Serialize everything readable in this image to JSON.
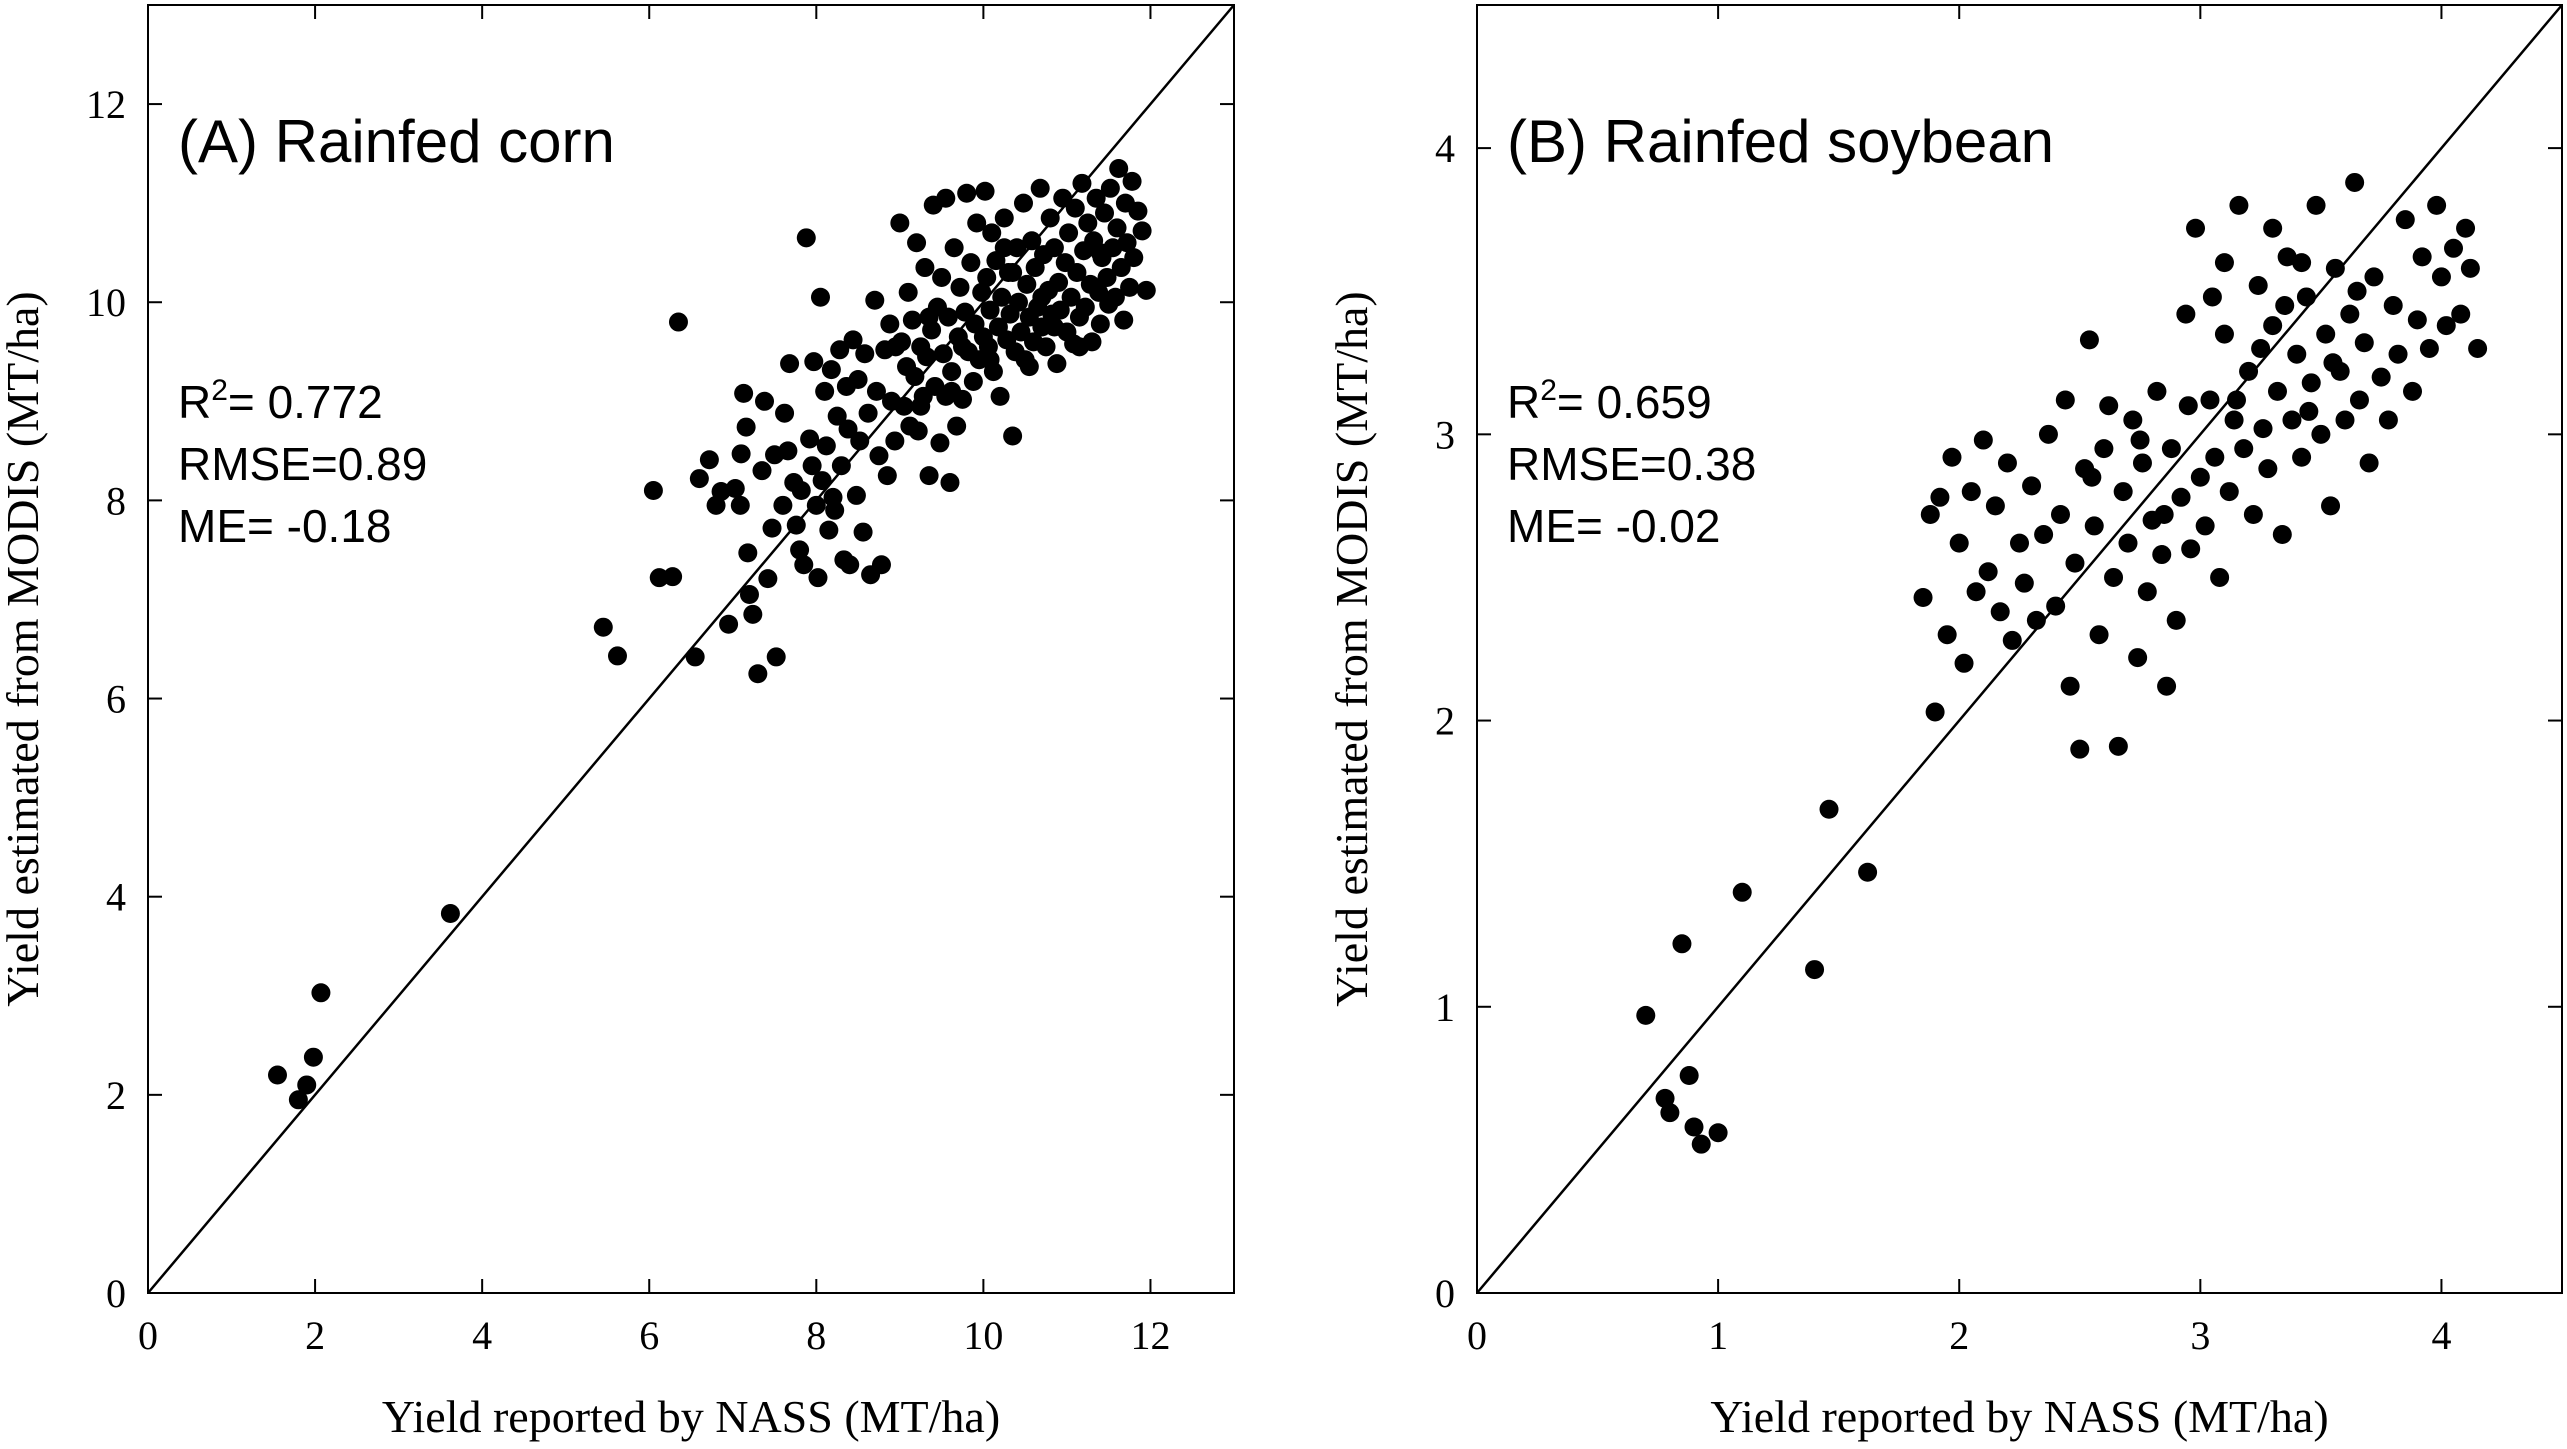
{
  "chart_data": [
    {
      "type": "scatter",
      "panel_title": "(A) Rainfed corn",
      "xlabel": "Yield reported by NASS (MT/ha)",
      "ylabel": "Yield estimated from MODIS (MT/ha)",
      "xlim": [
        0,
        13
      ],
      "ylim": [
        0,
        13
      ],
      "xticks": [
        0,
        2,
        4,
        6,
        8,
        10,
        12
      ],
      "yticks": [
        0,
        2,
        4,
        6,
        8,
        10,
        12
      ],
      "reference_line": "1:1",
      "grid": false,
      "stats": {
        "r2_label": "R",
        "r2_sup": "2",
        "r2_value": "= 0.772",
        "rmse": "RMSE=0.89",
        "me": "ME= -0.18"
      },
      "points": [
        [
          1.55,
          2.2
        ],
        [
          1.8,
          1.95
        ],
        [
          1.9,
          2.1
        ],
        [
          1.98,
          2.38
        ],
        [
          2.07,
          3.03
        ],
        [
          3.62,
          3.83
        ],
        [
          5.45,
          6.72
        ],
        [
          5.62,
          6.43
        ],
        [
          6.05,
          8.1
        ],
        [
          6.12,
          7.22
        ],
        [
          6.28,
          7.23
        ],
        [
          6.35,
          9.8
        ],
        [
          6.55,
          6.42
        ],
        [
          6.6,
          8.22
        ],
        [
          6.72,
          8.41
        ],
        [
          6.8,
          7.95
        ],
        [
          6.86,
          8.09
        ],
        [
          6.95,
          6.75
        ],
        [
          7.03,
          8.12
        ],
        [
          7.09,
          7.95
        ],
        [
          7.1,
          8.47
        ],
        [
          7.13,
          9.08
        ],
        [
          7.16,
          8.74
        ],
        [
          7.18,
          7.47
        ],
        [
          7.2,
          7.05
        ],
        [
          7.24,
          6.85
        ],
        [
          7.3,
          6.25
        ],
        [
          7.35,
          8.3
        ],
        [
          7.38,
          9.0
        ],
        [
          7.42,
          7.21
        ],
        [
          7.47,
          7.72
        ],
        [
          7.5,
          8.46
        ],
        [
          7.52,
          6.42
        ],
        [
          7.6,
          7.95
        ],
        [
          7.62,
          8.88
        ],
        [
          7.66,
          8.5
        ],
        [
          7.68,
          9.38
        ],
        [
          7.73,
          8.18
        ],
        [
          7.76,
          7.75
        ],
        [
          7.8,
          7.5
        ],
        [
          7.82,
          8.1
        ],
        [
          7.85,
          7.35
        ],
        [
          7.88,
          10.65
        ],
        [
          7.92,
          8.62
        ],
        [
          7.95,
          8.35
        ],
        [
          7.97,
          9.4
        ],
        [
          8.0,
          7.95
        ],
        [
          8.02,
          7.22
        ],
        [
          8.05,
          10.05
        ],
        [
          8.07,
          8.2
        ],
        [
          8.1,
          9.1
        ],
        [
          8.12,
          8.55
        ],
        [
          8.15,
          7.7
        ],
        [
          8.18,
          9.32
        ],
        [
          8.2,
          8.03
        ],
        [
          8.22,
          7.9
        ],
        [
          8.25,
          8.85
        ],
        [
          8.28,
          9.52
        ],
        [
          8.3,
          8.35
        ],
        [
          8.33,
          7.4
        ],
        [
          8.36,
          9.15
        ],
        [
          8.38,
          8.72
        ],
        [
          8.4,
          7.35
        ],
        [
          8.44,
          9.62
        ],
        [
          8.48,
          8.05
        ],
        [
          8.5,
          9.22
        ],
        [
          8.52,
          8.6
        ],
        [
          8.56,
          7.68
        ],
        [
          8.58,
          9.48
        ],
        [
          8.62,
          8.88
        ],
        [
          8.65,
          7.25
        ],
        [
          8.7,
          10.02
        ],
        [
          8.72,
          9.1
        ],
        [
          8.75,
          8.45
        ],
        [
          8.78,
          7.35
        ],
        [
          8.82,
          9.52
        ],
        [
          8.85,
          8.25
        ],
        [
          8.88,
          9.78
        ],
        [
          8.9,
          9.0
        ],
        [
          8.94,
          8.6
        ],
        [
          9.0,
          10.8
        ],
        [
          9.02,
          9.6
        ],
        [
          9.05,
          8.95
        ],
        [
          9.08,
          9.35
        ],
        [
          9.1,
          10.1
        ],
        [
          9.12,
          8.75
        ],
        [
          9.15,
          9.82
        ],
        [
          9.18,
          9.25
        ],
        [
          9.2,
          10.6
        ],
        [
          9.22,
          8.7
        ],
        [
          9.25,
          9.55
        ],
        [
          9.28,
          9.05
        ],
        [
          9.3,
          10.35
        ],
        [
          9.32,
          9.45
        ],
        [
          9.35,
          8.25
        ],
        [
          9.38,
          9.72
        ],
        [
          9.4,
          10.98
        ],
        [
          9.42,
          9.15
        ],
        [
          9.45,
          9.95
        ],
        [
          9.48,
          8.58
        ],
        [
          9.5,
          10.25
        ],
        [
          9.52,
          9.48
        ],
        [
          9.55,
          11.05
        ],
        [
          9.58,
          9.85
        ],
        [
          9.6,
          8.18
        ],
        [
          9.62,
          9.3
        ],
        [
          9.65,
          10.55
        ],
        [
          9.68,
          8.75
        ],
        [
          9.7,
          9.65
        ],
        [
          9.72,
          10.15
        ],
        [
          9.75,
          9.02
        ],
        [
          9.78,
          9.9
        ],
        [
          9.8,
          11.1
        ],
        [
          9.82,
          9.5
        ],
        [
          9.85,
          10.4
        ],
        [
          9.88,
          9.2
        ],
        [
          9.9,
          9.78
        ],
        [
          9.92,
          10.8
        ],
        [
          9.95,
          9.42
        ],
        [
          9.98,
          10.1
        ],
        [
          10.0,
          9.65
        ],
        [
          10.02,
          11.12
        ],
        [
          10.04,
          10.25
        ],
        [
          10.06,
          9.55
        ],
        [
          10.08,
          9.92
        ],
        [
          10.1,
          10.7
        ],
        [
          10.12,
          9.3
        ],
        [
          10.15,
          10.42
        ],
        [
          10.18,
          9.75
        ],
        [
          10.2,
          9.05
        ],
        [
          10.22,
          10.05
        ],
        [
          10.25,
          10.85
        ],
        [
          10.28,
          9.62
        ],
        [
          10.3,
          10.3
        ],
        [
          10.32,
          9.88
        ],
        [
          10.35,
          8.65
        ],
        [
          10.38,
          9.5
        ],
        [
          10.4,
          10.55
        ],
        [
          10.42,
          10.0
        ],
        [
          10.45,
          9.7
        ],
        [
          10.48,
          11.0
        ],
        [
          10.5,
          9.42
        ],
        [
          10.52,
          10.18
        ],
        [
          10.55,
          9.85
        ],
        [
          10.58,
          10.62
        ],
        [
          10.6,
          9.6
        ],
        [
          10.62,
          10.35
        ],
        [
          10.65,
          9.95
        ],
        [
          10.68,
          11.15
        ],
        [
          10.7,
          9.75
        ],
        [
          10.72,
          10.48
        ],
        [
          10.75,
          9.55
        ],
        [
          10.78,
          10.12
        ],
        [
          10.8,
          10.85
        ],
        [
          10.82,
          9.88
        ],
        [
          10.85,
          10.55
        ],
        [
          10.88,
          9.38
        ],
        [
          10.9,
          10.2
        ],
        [
          10.92,
          9.92
        ],
        [
          10.95,
          11.05
        ],
        [
          10.98,
          10.4
        ],
        [
          11.0,
          9.7
        ],
        [
          11.02,
          10.7
        ],
        [
          11.05,
          10.05
        ],
        [
          11.08,
          9.58
        ],
        [
          11.1,
          10.95
        ],
        [
          11.12,
          10.3
        ],
        [
          11.15,
          9.85
        ],
        [
          11.18,
          11.2
        ],
        [
          11.2,
          10.52
        ],
        [
          11.22,
          9.95
        ],
        [
          11.25,
          10.8
        ],
        [
          11.28,
          10.18
        ],
        [
          11.3,
          9.6
        ],
        [
          11.32,
          10.62
        ],
        [
          11.35,
          11.05
        ],
        [
          11.38,
          10.1
        ],
        [
          11.4,
          9.78
        ],
        [
          11.42,
          10.45
        ],
        [
          11.45,
          10.9
        ],
        [
          11.48,
          10.25
        ],
        [
          11.5,
          9.98
        ],
        [
          11.52,
          11.15
        ],
        [
          11.55,
          10.55
        ],
        [
          11.58,
          10.05
        ],
        [
          11.6,
          10.75
        ],
        [
          11.62,
          11.35
        ],
        [
          11.65,
          10.35
        ],
        [
          11.68,
          9.82
        ],
        [
          11.7,
          11.0
        ],
        [
          11.72,
          10.6
        ],
        [
          11.75,
          10.15
        ],
        [
          11.78,
          11.22
        ],
        [
          11.8,
          10.45
        ],
        [
          11.85,
          10.92
        ],
        [
          11.9,
          10.72
        ],
        [
          11.95,
          10.12
        ],
        [
          9.25,
          8.95
        ],
        [
          9.62,
          9.1
        ],
        [
          10.08,
          9.42
        ],
        [
          10.55,
          9.35
        ],
        [
          10.85,
          9.75
        ],
        [
          11.15,
          9.55
        ],
        [
          9.75,
          9.55
        ],
        [
          10.25,
          10.55
        ],
        [
          10.7,
          10.05
        ],
        [
          11.4,
          10.5
        ],
        [
          9.55,
          9.05
        ],
        [
          10.35,
          10.3
        ],
        [
          8.95,
          9.55
        ],
        [
          9.35,
          9.85
        ]
      ]
    },
    {
      "type": "scatter",
      "panel_title": "(B) Rainfed soybean",
      "xlabel": "Yield reported by NASS (MT/ha)",
      "ylabel": "Yield estimated from MODIS (MT/ha)",
      "xlim": [
        0,
        4.5
      ],
      "ylim": [
        0,
        4.5
      ],
      "xticks": [
        0,
        1,
        2,
        3,
        4
      ],
      "yticks": [
        0,
        1,
        2,
        3,
        4
      ],
      "reference_line": "1:1",
      "grid": false,
      "stats": {
        "r2_label": "R",
        "r2_sup": "2",
        "r2_value": "= 0.659",
        "rmse": "RMSE=0.38",
        "me": "ME= -0.02"
      },
      "points": [
        [
          0.7,
          0.97
        ],
        [
          0.78,
          0.68
        ],
        [
          0.8,
          0.63
        ],
        [
          0.85,
          1.22
        ],
        [
          0.88,
          0.76
        ],
        [
          0.9,
          0.58
        ],
        [
          0.93,
          0.52
        ],
        [
          1.0,
          0.56
        ],
        [
          1.1,
          1.4
        ],
        [
          1.4,
          1.13
        ],
        [
          1.46,
          1.69
        ],
        [
          1.62,
          1.47
        ],
        [
          1.85,
          2.43
        ],
        [
          1.88,
          2.72
        ],
        [
          1.9,
          2.03
        ],
        [
          1.92,
          2.78
        ],
        [
          1.95,
          2.3
        ],
        [
          1.97,
          2.92
        ],
        [
          2.0,
          2.62
        ],
        [
          2.02,
          2.2
        ],
        [
          2.05,
          2.8
        ],
        [
          2.07,
          2.45
        ],
        [
          2.1,
          2.98
        ],
        [
          2.12,
          2.52
        ],
        [
          2.15,
          2.75
        ],
        [
          2.17,
          2.38
        ],
        [
          2.2,
          2.9
        ],
        [
          2.22,
          2.28
        ],
        [
          2.25,
          2.62
        ],
        [
          2.27,
          2.48
        ],
        [
          2.3,
          2.82
        ],
        [
          2.32,
          2.35
        ],
        [
          2.35,
          2.65
        ],
        [
          2.37,
          3.0
        ],
        [
          2.4,
          2.4
        ],
        [
          2.42,
          2.72
        ],
        [
          2.44,
          3.12
        ],
        [
          2.46,
          2.12
        ],
        [
          2.48,
          2.55
        ],
        [
          2.5,
          1.9
        ],
        [
          2.52,
          2.88
        ],
        [
          2.54,
          3.33
        ],
        [
          2.56,
          2.68
        ],
        [
          2.58,
          2.3
        ],
        [
          2.6,
          2.95
        ],
        [
          2.62,
          3.1
        ],
        [
          2.64,
          2.5
        ],
        [
          2.66,
          1.91
        ],
        [
          2.68,
          2.8
        ],
        [
          2.7,
          2.62
        ],
        [
          2.72,
          3.05
        ],
        [
          2.74,
          2.22
        ],
        [
          2.76,
          2.9
        ],
        [
          2.78,
          2.45
        ],
        [
          2.8,
          2.7
        ],
        [
          2.82,
          3.15
        ],
        [
          2.84,
          2.58
        ],
        [
          2.86,
          2.12
        ],
        [
          2.88,
          2.95
        ],
        [
          2.9,
          2.35
        ],
        [
          2.92,
          2.78
        ],
        [
          2.94,
          3.42
        ],
        [
          2.96,
          2.6
        ],
        [
          2.98,
          3.72
        ],
        [
          3.0,
          2.85
        ],
        [
          3.02,
          2.68
        ],
        [
          3.04,
          3.12
        ],
        [
          3.06,
          2.92
        ],
        [
          3.08,
          2.5
        ],
        [
          3.1,
          3.35
        ],
        [
          3.12,
          2.8
        ],
        [
          3.14,
          3.05
        ],
        [
          3.16,
          3.8
        ],
        [
          3.18,
          2.95
        ],
        [
          3.2,
          3.22
        ],
        [
          3.22,
          2.72
        ],
        [
          3.24,
          3.52
        ],
        [
          3.26,
          3.02
        ],
        [
          3.28,
          2.88
        ],
        [
          3.3,
          3.38
        ],
        [
          3.32,
          3.15
        ],
        [
          3.34,
          2.65
        ],
        [
          3.36,
          3.62
        ],
        [
          3.38,
          3.05
        ],
        [
          3.4,
          3.28
        ],
        [
          3.42,
          2.92
        ],
        [
          3.44,
          3.48
        ],
        [
          3.46,
          3.18
        ],
        [
          3.48,
          3.8
        ],
        [
          3.5,
          3.0
        ],
        [
          3.52,
          3.35
        ],
        [
          3.54,
          2.75
        ],
        [
          3.56,
          3.58
        ],
        [
          3.58,
          3.22
        ],
        [
          3.6,
          3.05
        ],
        [
          3.62,
          3.42
        ],
        [
          3.64,
          3.88
        ],
        [
          3.66,
          3.12
        ],
        [
          3.68,
          3.32
        ],
        [
          3.7,
          2.9
        ],
        [
          3.72,
          3.55
        ],
        [
          3.75,
          3.2
        ],
        [
          3.78,
          3.05
        ],
        [
          3.8,
          3.45
        ],
        [
          3.82,
          3.28
        ],
        [
          3.85,
          3.75
        ],
        [
          3.88,
          3.15
        ],
        [
          3.9,
          3.4
        ],
        [
          3.92,
          3.62
        ],
        [
          3.95,
          3.3
        ],
        [
          3.98,
          3.8
        ],
        [
          4.0,
          3.55
        ],
        [
          4.02,
          3.38
        ],
        [
          4.05,
          3.65
        ],
        [
          4.08,
          3.42
        ],
        [
          4.1,
          3.72
        ],
        [
          4.12,
          3.58
        ],
        [
          4.15,
          3.3
        ],
        [
          3.05,
          3.48
        ],
        [
          3.15,
          3.12
        ],
        [
          3.25,
          3.3
        ],
        [
          3.35,
          3.45
        ],
        [
          3.45,
          3.08
        ],
        [
          3.55,
          3.25
        ],
        [
          2.95,
          3.1
        ],
        [
          2.85,
          2.72
        ],
        [
          3.1,
          3.6
        ],
        [
          3.3,
          3.72
        ],
        [
          3.42,
          3.6
        ],
        [
          2.75,
          2.98
        ],
        [
          3.65,
          3.5
        ],
        [
          2.55,
          2.85
        ]
      ]
    }
  ]
}
